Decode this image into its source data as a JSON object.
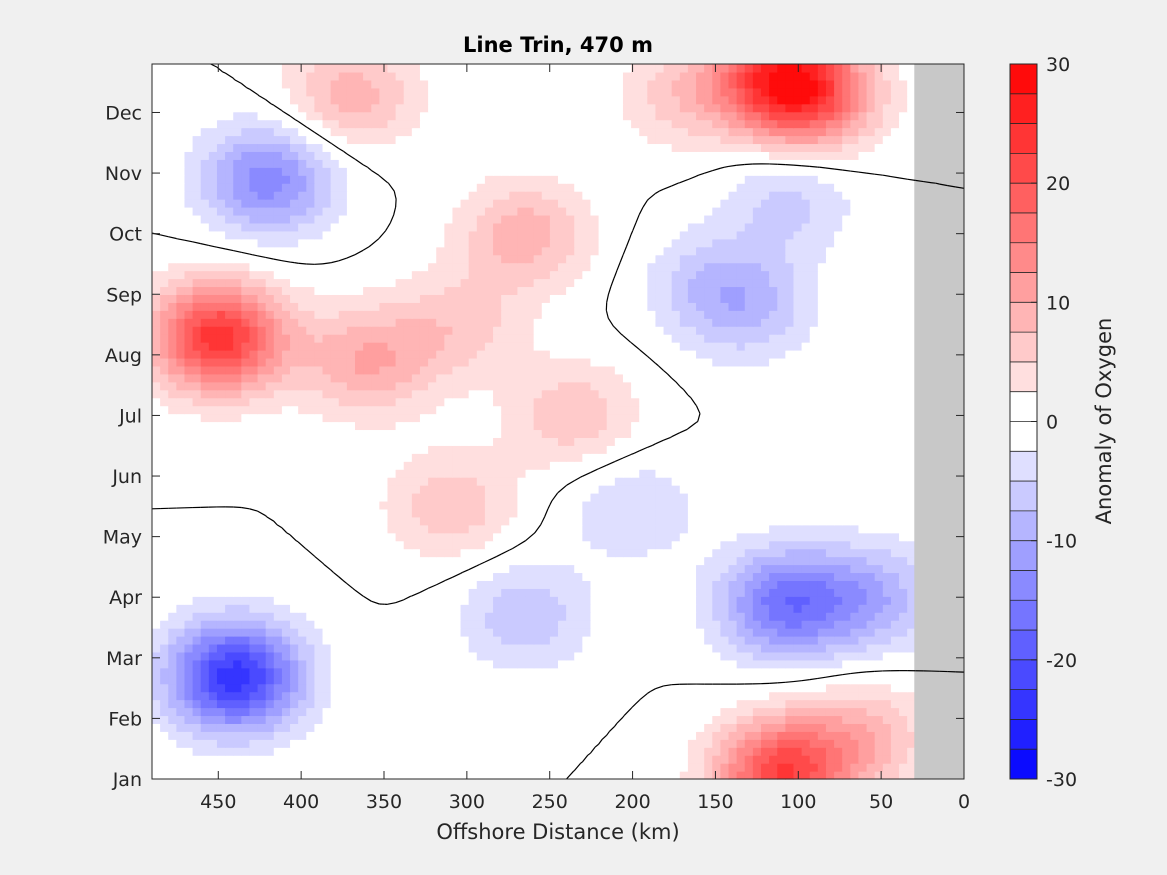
{
  "chart_data": {
    "type": "heatmap",
    "title": "Line Trin, 470 m",
    "xlabel": "Offshore Distance (km)",
    "ylabel": "",
    "xlim": [
      490,
      0
    ],
    "x_reversed": true,
    "x_ticks": [
      450,
      400,
      350,
      300,
      250,
      200,
      150,
      100,
      50,
      0
    ],
    "y_categories": [
      "Jan",
      "Feb",
      "Mar",
      "Apr",
      "May",
      "Jun",
      "Jul",
      "Aug",
      "Sep",
      "Oct",
      "Nov",
      "Dec"
    ],
    "colorbar": {
      "label": "Anomaly of Oxygen",
      "range": [
        -30,
        30
      ],
      "ticks": [
        30,
        20,
        10,
        0,
        -10,
        -20,
        -30
      ],
      "levels": 24,
      "low_color": "#0000ff",
      "mid_color": "#ffffff",
      "high_color": "#ff0000"
    },
    "no_data_range_km": [
      30,
      0
    ],
    "no_data_color": "#c8c8c8",
    "features": [
      {
        "x_km": 450,
        "month": 8.3,
        "anomaly": 24
      },
      {
        "x_km": 110,
        "month": 12.6,
        "anomaly": 22
      },
      {
        "x_km": 110,
        "month": 1.1,
        "anomaly": 22
      },
      {
        "x_km": 440,
        "month": 2.7,
        "anomaly": -24
      },
      {
        "x_km": 420,
        "month": 10.9,
        "anomaly": -14
      },
      {
        "x_km": 108,
        "month": 3.9,
        "anomaly": -16
      },
      {
        "x_km": 55,
        "month": 4.0,
        "anomaly": -9
      },
      {
        "x_km": 360,
        "month": 7.9,
        "anomaly": 10
      },
      {
        "x_km": 370,
        "month": 12.3,
        "anomaly": 9
      },
      {
        "x_km": 265,
        "month": 10.0,
        "anomaly": 9
      },
      {
        "x_km": 235,
        "month": 7.0,
        "anomaly": 7
      },
      {
        "x_km": 310,
        "month": 5.5,
        "anomaly": 7
      },
      {
        "x_km": 305,
        "month": 8.5,
        "anomaly": 6
      },
      {
        "x_km": 90,
        "month": 12.2,
        "anomaly": 12
      },
      {
        "x_km": 60,
        "month": 1.7,
        "anomaly": 8
      },
      {
        "x_km": 170,
        "month": 12.3,
        "anomaly": 6
      },
      {
        "x_km": 130,
        "month": 8.8,
        "anomaly": -7
      },
      {
        "x_km": 265,
        "month": 3.7,
        "anomaly": -7
      },
      {
        "x_km": 155,
        "month": 9.2,
        "anomaly": -5
      },
      {
        "x_km": 200,
        "month": 5.5,
        "anomaly": -5
      },
      {
        "x_km": 105,
        "month": 10.6,
        "anomaly": -6
      }
    ]
  }
}
